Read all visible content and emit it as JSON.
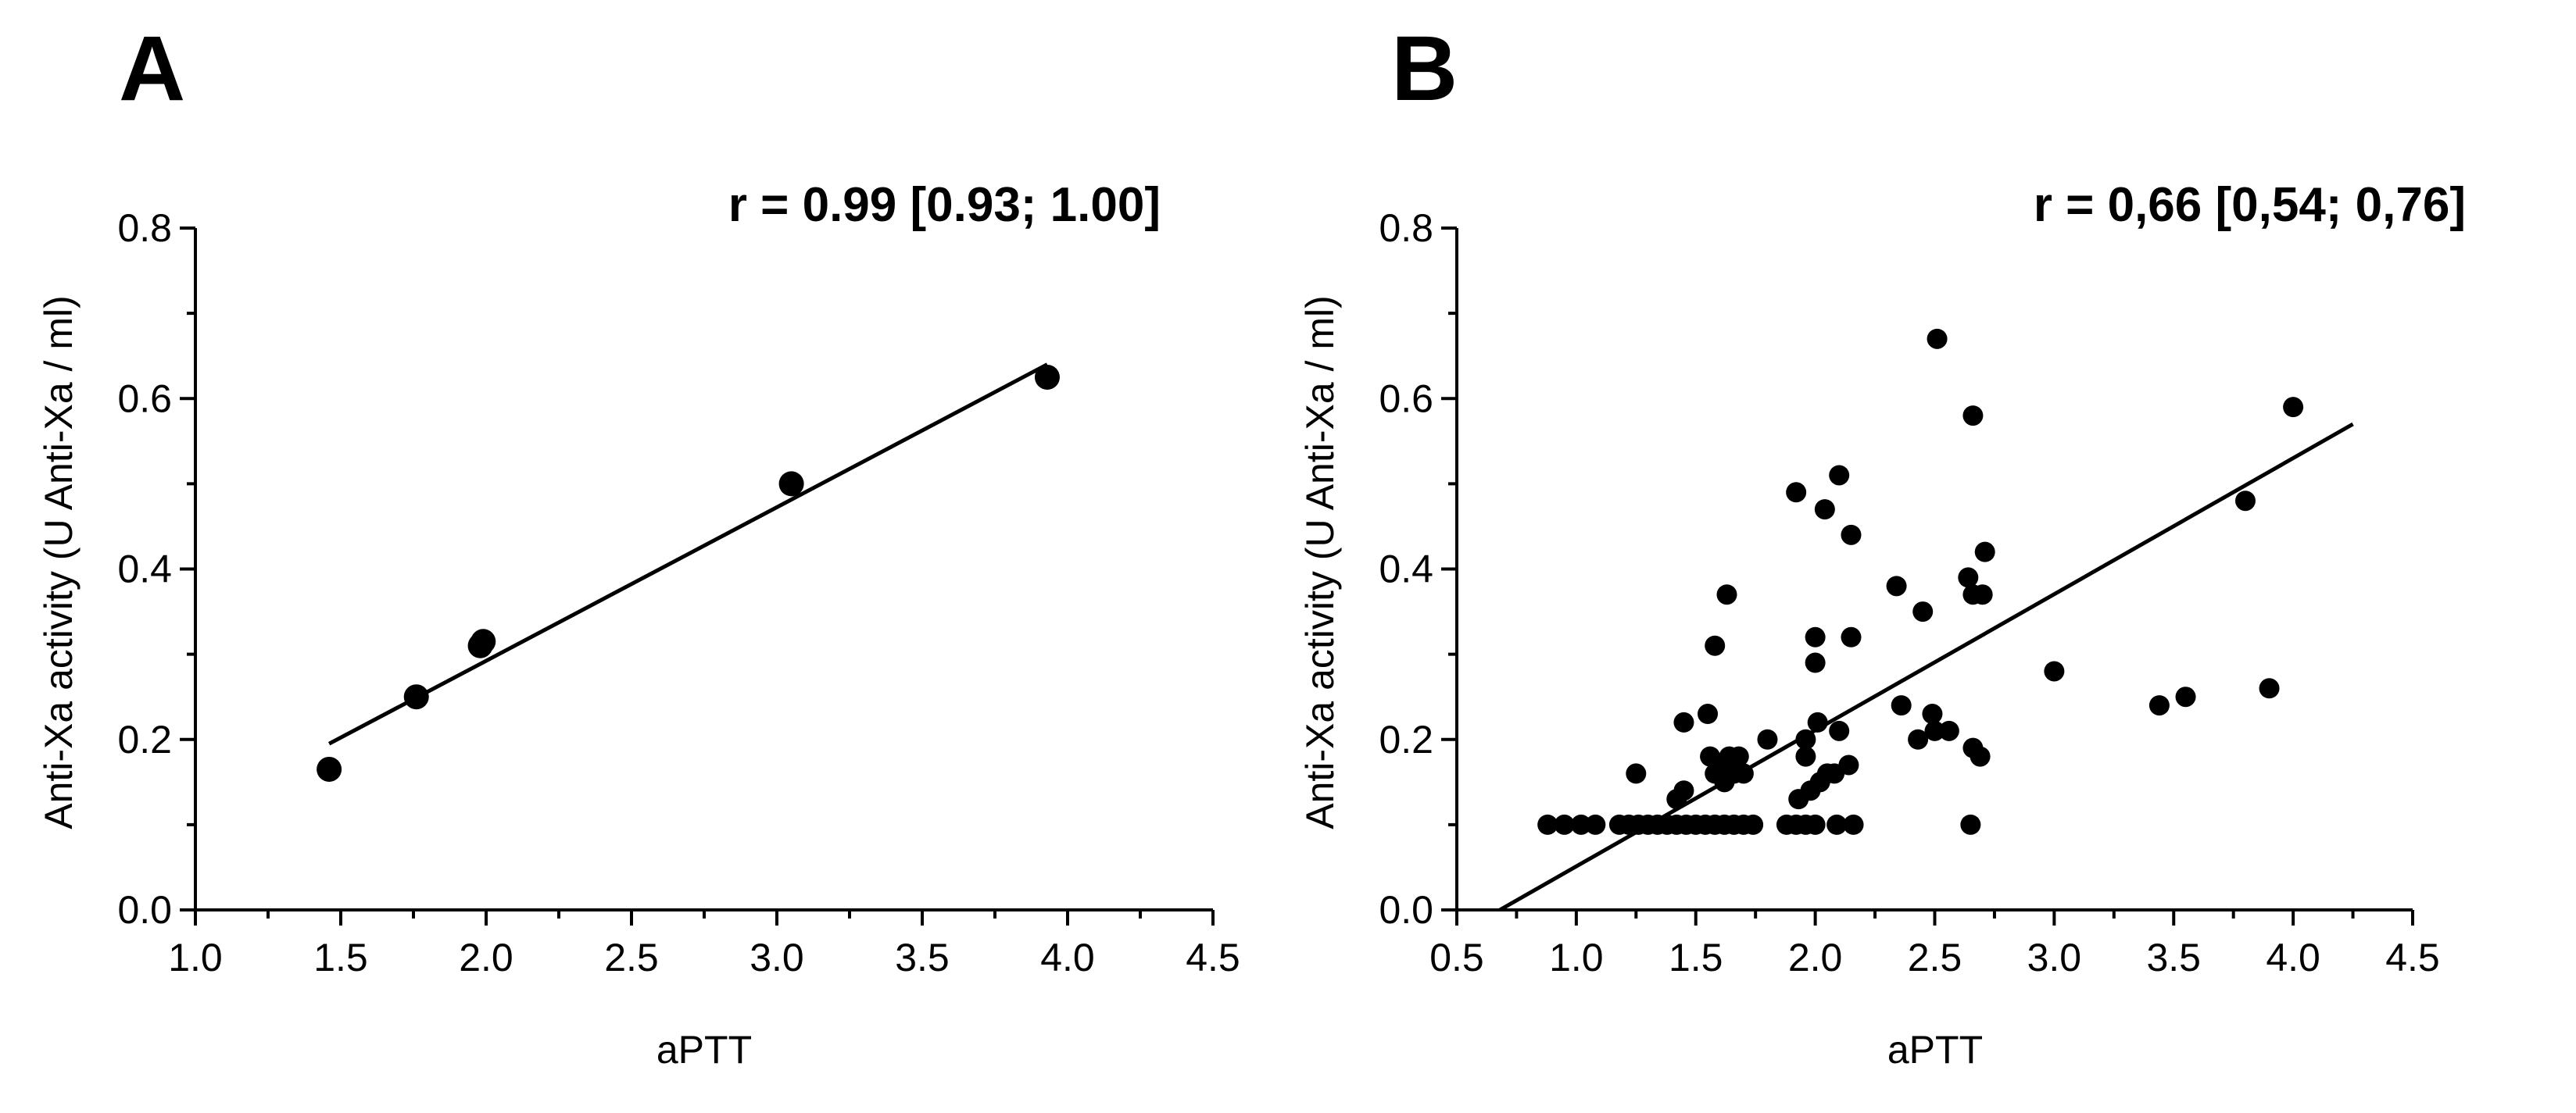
{
  "chart_data": [
    {
      "panel": "A",
      "type": "scatter",
      "annotation": "r = 0.99 [0.93; 1.00]",
      "xlabel": "aPTT",
      "ylabel": "Anti-Xa activity (U Anti-Xa / ml)",
      "xlim": [
        1.0,
        4.5
      ],
      "ylim": [
        0.0,
        0.8
      ],
      "xticks": [
        "1.0",
        "1.5",
        "2.0",
        "2.5",
        "3.0",
        "3.5",
        "4.0",
        "4.5"
      ],
      "yticks": [
        "0.0",
        "0.2",
        "0.4",
        "0.6",
        "0.8"
      ],
      "points": [
        {
          "x": 1.46,
          "y": 0.165
        },
        {
          "x": 1.76,
          "y": 0.25
        },
        {
          "x": 1.98,
          "y": 0.31
        },
        {
          "x": 1.99,
          "y": 0.315
        },
        {
          "x": 3.05,
          "y": 0.5
        },
        {
          "x": 3.93,
          "y": 0.625
        }
      ],
      "fit_line": {
        "x": [
          1.46,
          3.93
        ],
        "y": [
          0.195,
          0.64
        ]
      }
    },
    {
      "panel": "B",
      "type": "scatter",
      "annotation": "r = 0,66 [0,54; 0,76]",
      "xlabel": "aPTT",
      "ylabel": "Anti-Xa activity (U Anti-Xa / ml)",
      "xlim": [
        0.5,
        4.5
      ],
      "ylim": [
        0.0,
        0.8
      ],
      "xticks": [
        "0.5",
        "1.0",
        "1.5",
        "2.0",
        "2.5",
        "3.0",
        "3.5",
        "4.0",
        "4.5"
      ],
      "yticks": [
        "0.0",
        "0.2",
        "0.4",
        "0.6",
        "0.8"
      ],
      "points": [
        {
          "x": 0.88,
          "y": 0.1
        },
        {
          "x": 0.95,
          "y": 0.1
        },
        {
          "x": 1.02,
          "y": 0.1
        },
        {
          "x": 1.08,
          "y": 0.1
        },
        {
          "x": 1.18,
          "y": 0.1
        },
        {
          "x": 1.22,
          "y": 0.1
        },
        {
          "x": 1.26,
          "y": 0.1
        },
        {
          "x": 1.3,
          "y": 0.1
        },
        {
          "x": 1.34,
          "y": 0.1
        },
        {
          "x": 1.38,
          "y": 0.1
        },
        {
          "x": 1.42,
          "y": 0.1
        },
        {
          "x": 1.46,
          "y": 0.1
        },
        {
          "x": 1.5,
          "y": 0.1
        },
        {
          "x": 1.54,
          "y": 0.1
        },
        {
          "x": 1.58,
          "y": 0.1
        },
        {
          "x": 1.62,
          "y": 0.1
        },
        {
          "x": 1.66,
          "y": 0.1
        },
        {
          "x": 1.7,
          "y": 0.1
        },
        {
          "x": 1.74,
          "y": 0.1
        },
        {
          "x": 1.88,
          "y": 0.1
        },
        {
          "x": 1.92,
          "y": 0.1
        },
        {
          "x": 1.96,
          "y": 0.1
        },
        {
          "x": 2.0,
          "y": 0.1
        },
        {
          "x": 2.09,
          "y": 0.1
        },
        {
          "x": 2.16,
          "y": 0.1
        },
        {
          "x": 1.25,
          "y": 0.16
        },
        {
          "x": 1.42,
          "y": 0.13
        },
        {
          "x": 1.45,
          "y": 0.14
        },
        {
          "x": 1.45,
          "y": 0.22
        },
        {
          "x": 1.55,
          "y": 0.23
        },
        {
          "x": 1.56,
          "y": 0.18
        },
        {
          "x": 1.58,
          "y": 0.31
        },
        {
          "x": 1.58,
          "y": 0.16
        },
        {
          "x": 1.6,
          "y": 0.17
        },
        {
          "x": 1.62,
          "y": 0.15
        },
        {
          "x": 1.63,
          "y": 0.37
        },
        {
          "x": 1.64,
          "y": 0.18
        },
        {
          "x": 1.66,
          "y": 0.16
        },
        {
          "x": 1.68,
          "y": 0.18
        },
        {
          "x": 1.7,
          "y": 0.16
        },
        {
          "x": 1.8,
          "y": 0.2
        },
        {
          "x": 1.92,
          "y": 0.49
        },
        {
          "x": 1.93,
          "y": 0.13
        },
        {
          "x": 1.96,
          "y": 0.2
        },
        {
          "x": 1.96,
          "y": 0.18
        },
        {
          "x": 1.98,
          "y": 0.14
        },
        {
          "x": 2.0,
          "y": 0.32
        },
        {
          "x": 2.0,
          "y": 0.29
        },
        {
          "x": 2.01,
          "y": 0.22
        },
        {
          "x": 2.02,
          "y": 0.15
        },
        {
          "x": 2.04,
          "y": 0.47
        },
        {
          "x": 2.05,
          "y": 0.16
        },
        {
          "x": 2.08,
          "y": 0.16
        },
        {
          "x": 2.1,
          "y": 0.51
        },
        {
          "x": 2.1,
          "y": 0.21
        },
        {
          "x": 2.14,
          "y": 0.17
        },
        {
          "x": 2.15,
          "y": 0.44
        },
        {
          "x": 2.15,
          "y": 0.32
        },
        {
          "x": 2.34,
          "y": 0.38
        },
        {
          "x": 2.36,
          "y": 0.24
        },
        {
          "x": 2.43,
          "y": 0.2
        },
        {
          "x": 2.45,
          "y": 0.35
        },
        {
          "x": 2.49,
          "y": 0.23
        },
        {
          "x": 2.5,
          "y": 0.21
        },
        {
          "x": 2.51,
          "y": 0.67
        },
        {
          "x": 2.56,
          "y": 0.21
        },
        {
          "x": 2.64,
          "y": 0.39
        },
        {
          "x": 2.65,
          "y": 0.1
        },
        {
          "x": 2.66,
          "y": 0.58
        },
        {
          "x": 2.66,
          "y": 0.37
        },
        {
          "x": 2.66,
          "y": 0.19
        },
        {
          "x": 2.69,
          "y": 0.18
        },
        {
          "x": 2.7,
          "y": 0.37
        },
        {
          "x": 2.71,
          "y": 0.42
        },
        {
          "x": 3.0,
          "y": 0.28
        },
        {
          "x": 3.44,
          "y": 0.24
        },
        {
          "x": 3.55,
          "y": 0.25
        },
        {
          "x": 3.8,
          "y": 0.48
        },
        {
          "x": 3.9,
          "y": 0.26
        },
        {
          "x": 4.0,
          "y": 0.59
        }
      ],
      "fit_line": {
        "x": [
          0.68,
          4.25
        ],
        "y": [
          0.0,
          0.57
        ]
      }
    }
  ]
}
